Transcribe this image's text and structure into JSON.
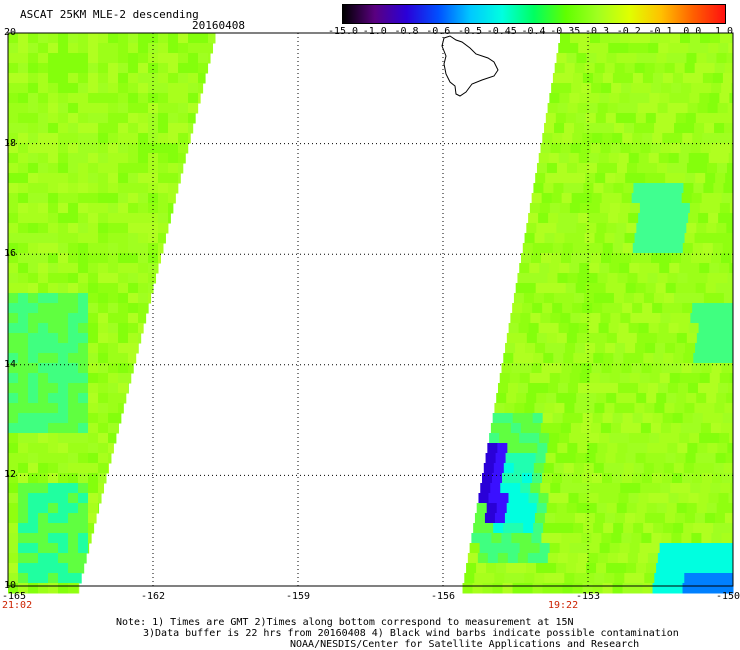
{
  "header": {
    "title": "ASCAT 25KM MLE-2 descending",
    "date": "20160408"
  },
  "colorbar": {
    "labels": [
      "-15.0",
      "-1.0",
      "-0.8",
      "-0.6",
      "-0.5",
      "-0.45",
      "-0.4",
      "-0.35",
      "-0.3",
      "-0.2",
      "-0.1",
      "0.0",
      "1.0"
    ],
    "colors": [
      "#000000",
      "#5a0080",
      "#2a00d8",
      "#0050ff",
      "#00c8ff",
      "#00ffe0",
      "#00ff60",
      "#60ff00",
      "#a0ff20",
      "#e0ff00",
      "#ffc000",
      "#ff6000",
      "#ff1010"
    ]
  },
  "axes": {
    "lat_labels": [
      "20",
      "18",
      "16",
      "14",
      "12",
      "10"
    ],
    "lon_labels": [
      "-165",
      "-162",
      "-159",
      "-156",
      "-153",
      "-150"
    ],
    "lat_range": [
      10,
      20
    ],
    "lon_range": [
      -165,
      -150
    ],
    "grid": "dotted"
  },
  "time_labels": {
    "left": "21:02",
    "right": "19:22"
  },
  "notes": [
    "Note: 1) Times are GMT 2)Times along bottom correspond to measurement at 15N",
    "3)Data buffer is 22 hrs from 20160408 4) Black wind barbs indicate possible contamination",
    "NOAA/NESDIS/Center for Satellite Applications and Research"
  ],
  "colors": {
    "dominant_field": "#a0ff20",
    "low_anomaly": "#2a00d8",
    "cyan_region": "#00ffe0",
    "time_label": "#cc2200"
  }
}
